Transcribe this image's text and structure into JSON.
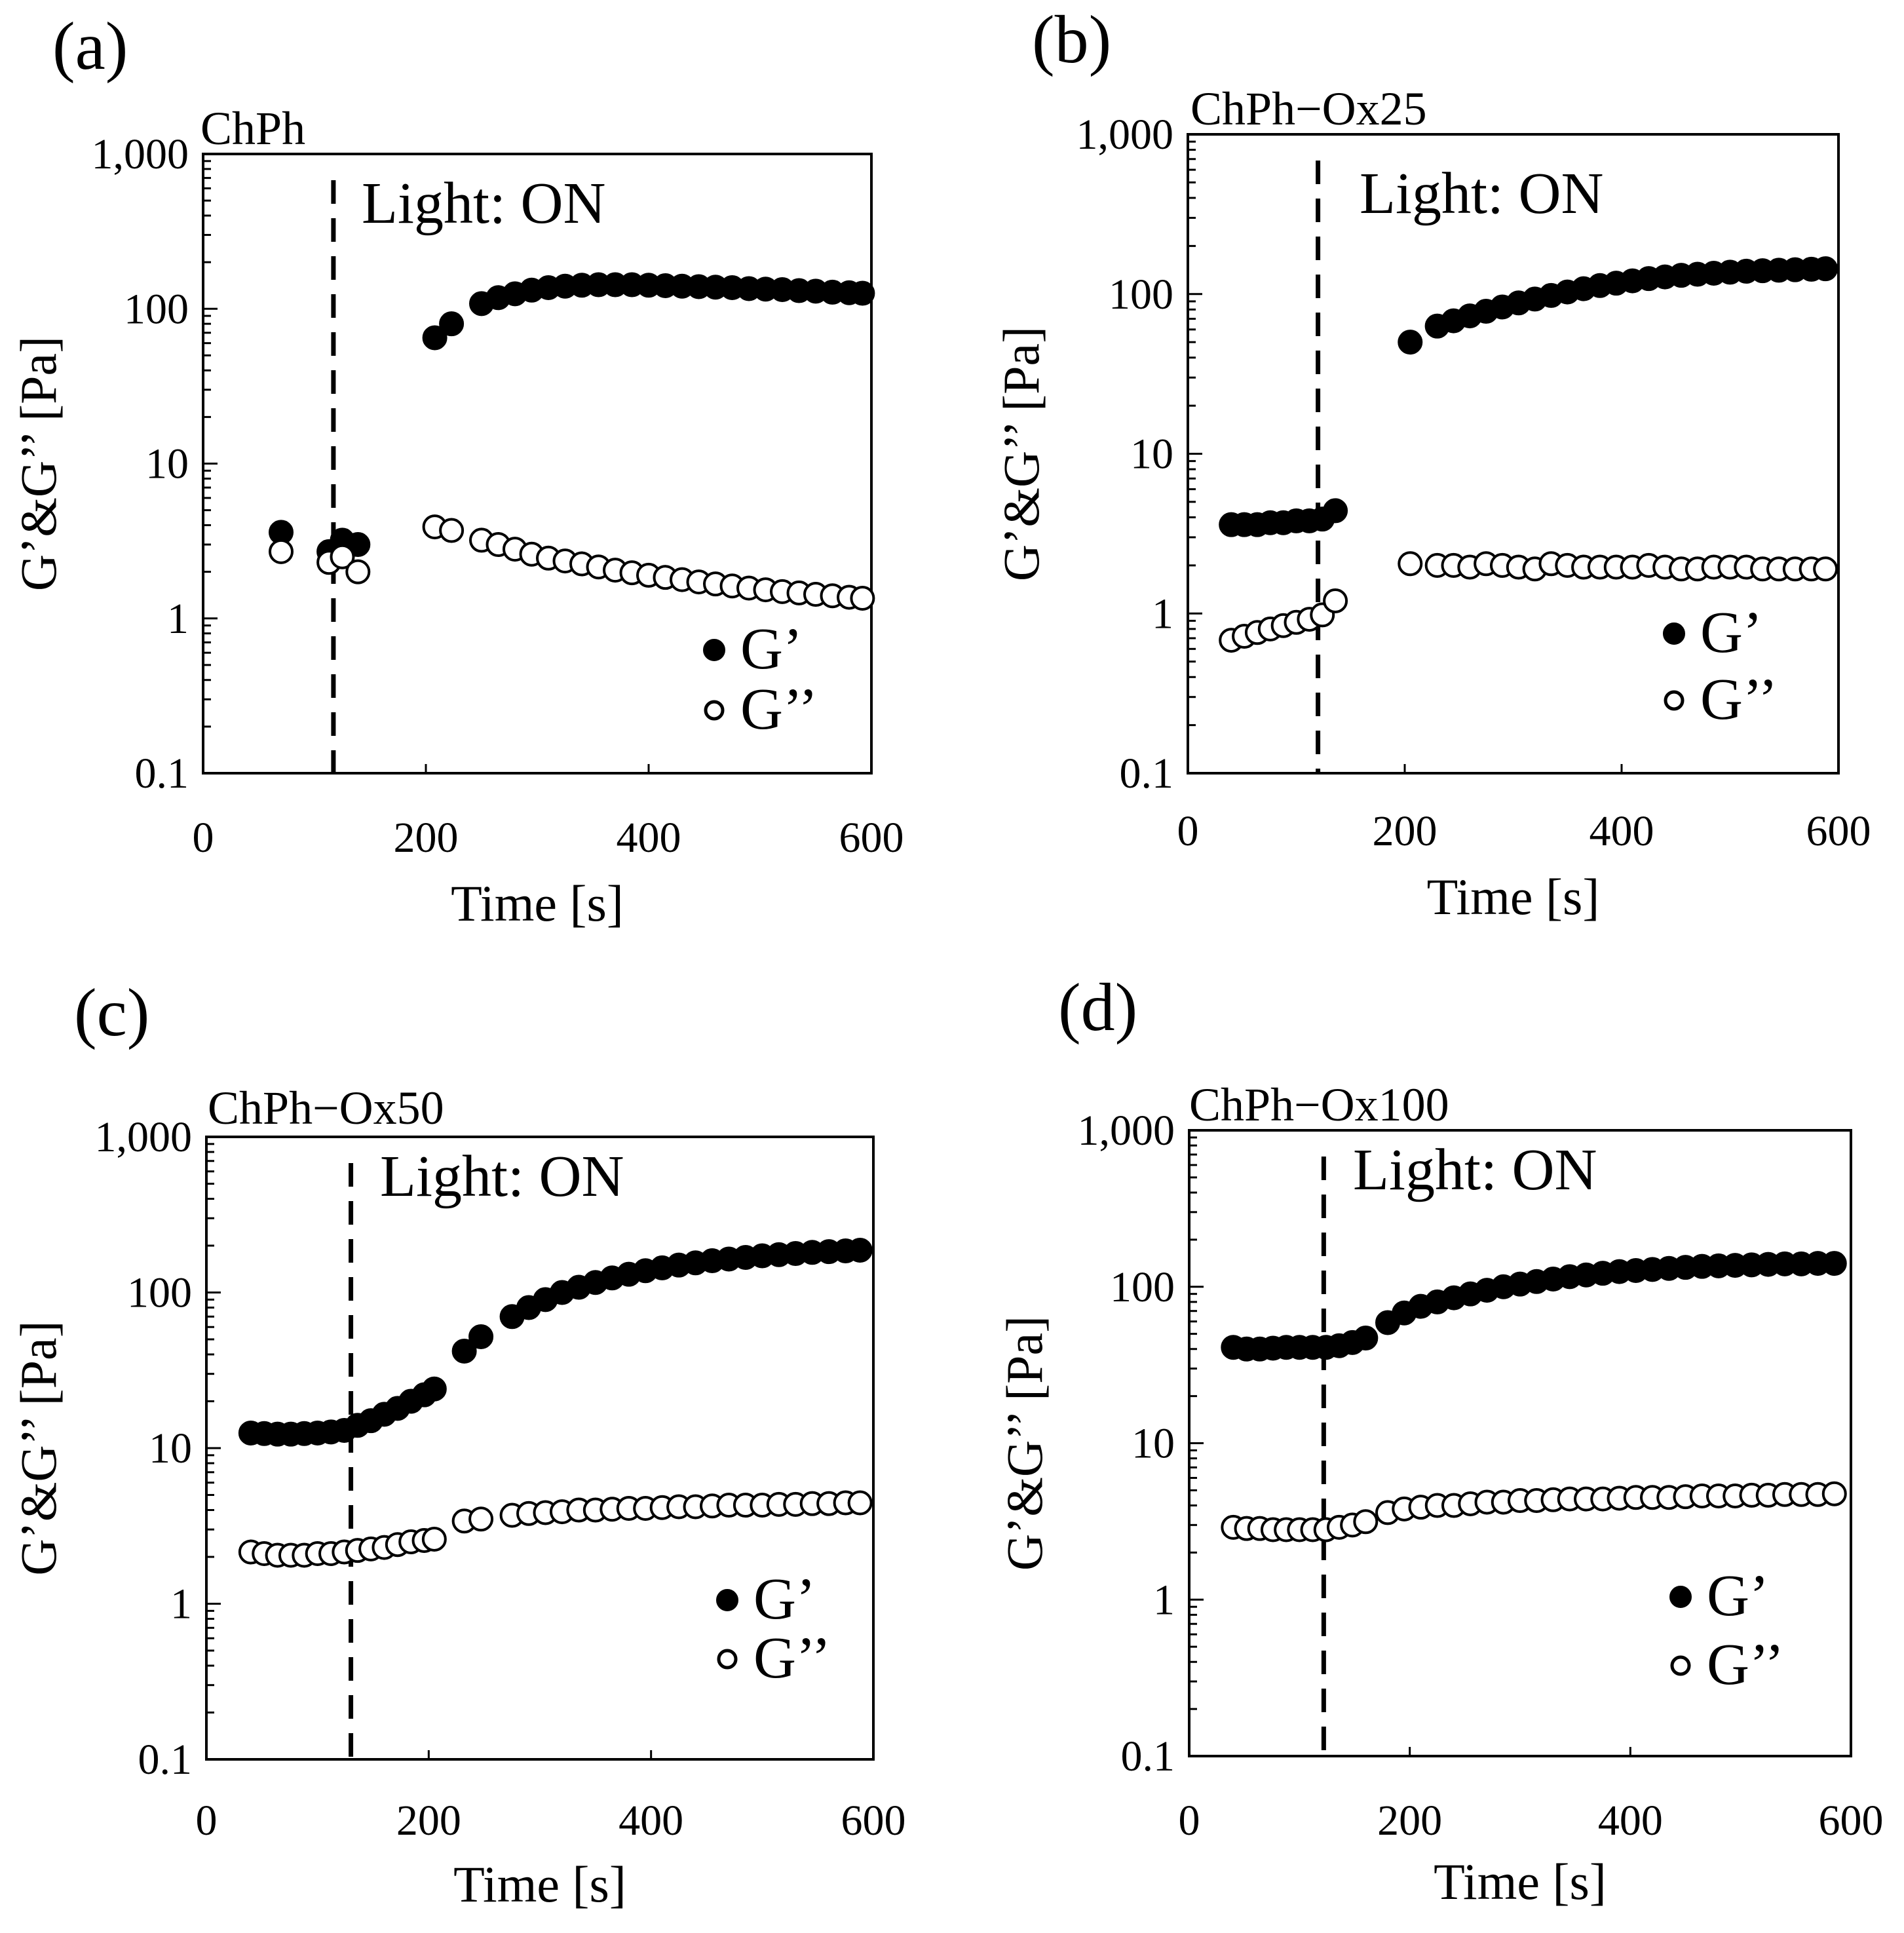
{
  "figure": {
    "ylabel": "G’&G’’ [Pa]",
    "xlabel": "Time [s]",
    "annotation": "Light: ON",
    "legend": [
      "G’",
      "G’’"
    ],
    "colors": {
      "axis": "#000000",
      "g_prime_fill": "#000000",
      "g_double_prime_fill": "#ffffff"
    }
  },
  "chart_data": [
    {
      "type": "scatter",
      "panel": "(a)",
      "title": "ChPh",
      "xlabel": "Time [s]",
      "ylabel": "G’&G’’ [Pa]",
      "xlim": [
        0,
        600
      ],
      "ylim": [
        0.1,
        1000
      ],
      "yscale": "log",
      "xticks": [
        "0",
        "200",
        "400",
        "600"
      ],
      "yticks": [
        "0.1",
        "1",
        "10",
        "100",
        "1,000"
      ],
      "light_on_time": 117,
      "annotation": "Light: ON",
      "legend_position": "bottom-right",
      "series": [
        {
          "name": "G’",
          "marker": "filled-circle",
          "x": [
            70,
            113,
            125,
            139,
            208,
            223,
            250,
            265,
            280,
            295,
            310,
            325,
            340,
            355,
            370,
            385,
            400,
            415,
            430,
            445,
            460,
            475,
            490,
            505,
            520,
            535,
            550,
            565,
            580,
            592
          ],
          "y": [
            3.6,
            2.7,
            3.2,
            3.0,
            65,
            80,
            108,
            118,
            125,
            132,
            137,
            140,
            142,
            143,
            143,
            143,
            142,
            141,
            140,
            139,
            138,
            137,
            135,
            134,
            133,
            131,
            130,
            128,
            127,
            126
          ]
        },
        {
          "name": "G’’",
          "marker": "open-circle",
          "x": [
            70,
            113,
            125,
            139,
            208,
            223,
            250,
            265,
            280,
            295,
            310,
            325,
            340,
            355,
            370,
            385,
            400,
            415,
            430,
            445,
            460,
            475,
            490,
            505,
            520,
            535,
            550,
            565,
            580,
            592
          ],
          "y": [
            2.7,
            2.3,
            2.5,
            2.0,
            3.9,
            3.7,
            3.2,
            3.0,
            2.8,
            2.6,
            2.45,
            2.35,
            2.25,
            2.15,
            2.05,
            1.97,
            1.9,
            1.84,
            1.78,
            1.72,
            1.67,
            1.62,
            1.57,
            1.53,
            1.49,
            1.46,
            1.43,
            1.4,
            1.37,
            1.35
          ]
        }
      ]
    },
    {
      "type": "scatter",
      "panel": "(b)",
      "title": "ChPh−Ox25",
      "xlabel": "Time [s]",
      "ylabel": "G’&G’’ [Pa]",
      "xlim": [
        0,
        600
      ],
      "ylim": [
        0.1,
        1000
      ],
      "yscale": "log",
      "xticks": [
        "0",
        "200",
        "400",
        "600"
      ],
      "yticks": [
        "0.1",
        "1",
        "10",
        "100",
        "1,000"
      ],
      "light_on_time": 120,
      "annotation": "Light: ON",
      "legend_position": "bottom-right",
      "series": [
        {
          "name": "G’",
          "marker": "filled-circle",
          "x": [
            40,
            52,
            64,
            76,
            88,
            100,
            112,
            124,
            136,
            205,
            230,
            245,
            260,
            275,
            290,
            305,
            320,
            335,
            350,
            365,
            380,
            395,
            410,
            425,
            440,
            455,
            470,
            485,
            500,
            515,
            530,
            545,
            560,
            575,
            588
          ],
          "y": [
            3.6,
            3.6,
            3.6,
            3.7,
            3.7,
            3.8,
            3.8,
            3.9,
            4.4,
            50,
            63,
            68,
            73,
            78,
            83,
            88,
            93,
            98,
            103,
            108,
            113,
            117,
            121,
            125,
            128,
            131,
            133,
            135,
            137,
            139,
            140,
            141,
            142,
            143,
            144
          ]
        },
        {
          "name": "G’’",
          "marker": "open-circle",
          "x": [
            40,
            52,
            64,
            76,
            88,
            100,
            112,
            124,
            136,
            205,
            230,
            245,
            260,
            275,
            290,
            305,
            320,
            335,
            350,
            365,
            380,
            395,
            410,
            425,
            440,
            455,
            470,
            485,
            500,
            515,
            530,
            545,
            560,
            575,
            588
          ],
          "y": [
            0.68,
            0.72,
            0.76,
            0.8,
            0.84,
            0.88,
            0.92,
            0.98,
            1.2,
            2.05,
            2.0,
            2.0,
            1.95,
            2.05,
            2.0,
            1.95,
            1.9,
            2.05,
            2.0,
            1.95,
            1.95,
            1.95,
            1.95,
            2.0,
            1.95,
            1.9,
            1.9,
            1.95,
            1.95,
            1.95,
            1.9,
            1.9,
            1.9,
            1.9,
            1.9
          ]
        }
      ]
    },
    {
      "type": "scatter",
      "panel": "(c)",
      "title": "ChPh−Ox50",
      "xlabel": "Time [s]",
      "ylabel": "G’&G’’ [Pa]",
      "xlim": [
        0,
        600
      ],
      "ylim": [
        0.1,
        1000
      ],
      "yscale": "log",
      "xticks": [
        "0",
        "200",
        "400",
        "600"
      ],
      "yticks": [
        "0.1",
        "1",
        "10",
        "100",
        "1,000"
      ],
      "light_on_time": 130,
      "annotation": "Light: ON",
      "legend_position": "bottom-right",
      "series": [
        {
          "name": "G’",
          "marker": "filled-circle",
          "x": [
            40,
            52,
            64,
            76,
            88,
            100,
            112,
            124,
            136,
            148,
            160,
            172,
            184,
            196,
            205,
            232,
            247,
            275,
            290,
            305,
            320,
            335,
            350,
            365,
            380,
            395,
            410,
            425,
            440,
            455,
            470,
            485,
            500,
            515,
            530,
            545,
            560,
            575,
            588
          ],
          "y": [
            12.5,
            12.4,
            12.3,
            12.3,
            12.4,
            12.5,
            12.7,
            13,
            14,
            15,
            16.5,
            18,
            20,
            22,
            24,
            42,
            52,
            70,
            80,
            90,
            100,
            108,
            116,
            124,
            131,
            138,
            144,
            150,
            155,
            160,
            164,
            168,
            172,
            175,
            178,
            181,
            183,
            185,
            187
          ]
        },
        {
          "name": "G’’",
          "marker": "open-circle",
          "x": [
            40,
            52,
            64,
            76,
            88,
            100,
            112,
            124,
            136,
            148,
            160,
            172,
            184,
            196,
            205,
            232,
            247,
            275,
            290,
            305,
            320,
            335,
            350,
            365,
            380,
            395,
            410,
            425,
            440,
            455,
            470,
            485,
            500,
            515,
            530,
            545,
            560,
            575,
            588
          ],
          "y": [
            2.15,
            2.1,
            2.05,
            2.05,
            2.05,
            2.1,
            2.1,
            2.15,
            2.2,
            2.25,
            2.3,
            2.4,
            2.5,
            2.55,
            2.6,
            3.4,
            3.5,
            3.7,
            3.8,
            3.85,
            3.9,
            4.0,
            4.0,
            4.05,
            4.1,
            4.1,
            4.15,
            4.2,
            4.2,
            4.25,
            4.3,
            4.3,
            4.3,
            4.35,
            4.35,
            4.4,
            4.4,
            4.45,
            4.45
          ]
        }
      ]
    },
    {
      "type": "scatter",
      "panel": "(d)",
      "title": "ChPh−Ox100",
      "xlabel": "Time [s]",
      "ylabel": "G’&G’’ [Pa]",
      "xlim": [
        0,
        600
      ],
      "ylim": [
        0.1,
        1000
      ],
      "yscale": "log",
      "xticks": [
        "0",
        "200",
        "400",
        "600"
      ],
      "yticks": [
        "0.1",
        "1",
        "10",
        "100",
        "1,000"
      ],
      "light_on_time": 122,
      "annotation": "Light: ON",
      "legend_position": "bottom-right",
      "series": [
        {
          "name": "G’",
          "marker": "filled-circle",
          "x": [
            40,
            52,
            64,
            76,
            88,
            100,
            112,
            124,
            136,
            148,
            160,
            180,
            195,
            210,
            225,
            240,
            255,
            270,
            285,
            300,
            315,
            330,
            345,
            360,
            375,
            390,
            405,
            420,
            435,
            450,
            465,
            480,
            495,
            510,
            525,
            540,
            555,
            570,
            585
          ],
          "y": [
            41,
            40,
            40,
            40.5,
            41,
            41,
            41,
            41,
            42,
            44,
            47,
            59,
            68,
            75,
            80,
            85,
            90,
            95,
            100,
            104,
            108,
            112,
            116,
            119,
            122,
            125,
            127,
            129,
            131,
            133,
            135,
            136,
            137,
            138,
            139,
            140,
            140,
            141,
            141
          ]
        },
        {
          "name": "G’’",
          "marker": "open-circle",
          "x": [
            40,
            52,
            64,
            76,
            88,
            100,
            112,
            124,
            136,
            148,
            160,
            180,
            195,
            210,
            225,
            240,
            255,
            270,
            285,
            300,
            315,
            330,
            345,
            360,
            375,
            390,
            405,
            420,
            435,
            450,
            465,
            480,
            495,
            510,
            525,
            540,
            555,
            570,
            585
          ],
          "y": [
            2.9,
            2.85,
            2.85,
            2.8,
            2.8,
            2.8,
            2.8,
            2.8,
            2.9,
            3.0,
            3.15,
            3.6,
            3.8,
            3.9,
            4.0,
            4.0,
            4.1,
            4.2,
            4.2,
            4.3,
            4.3,
            4.35,
            4.4,
            4.4,
            4.4,
            4.45,
            4.5,
            4.5,
            4.5,
            4.55,
            4.6,
            4.6,
            4.6,
            4.65,
            4.65,
            4.7,
            4.7,
            4.7,
            4.75
          ]
        }
      ]
    }
  ]
}
